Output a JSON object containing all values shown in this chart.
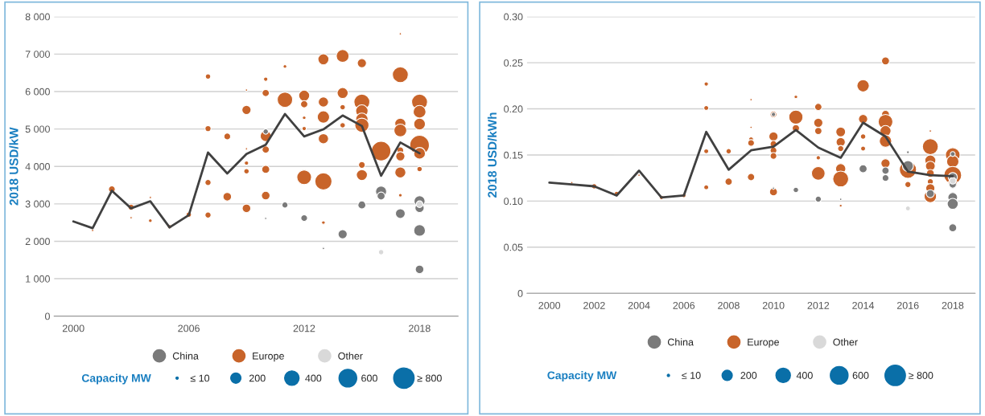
{
  "chart_data": [
    {
      "type": "bubble",
      "ylabel": "2018 USD/kW",
      "legend_title": "Capacity MW",
      "xlim": [
        1999,
        2020
      ],
      "xticks": [
        2000,
        2006,
        2012,
        2018
      ],
      "ylim": [
        0,
        8000
      ],
      "yticks": [
        0,
        {
          "value": 1000,
          "label": "1 000"
        },
        {
          "value": 2000,
          "label": "2 000"
        },
        {
          "value": 3000,
          "label": "3 000"
        },
        {
          "value": 4000,
          "label": "4 000"
        },
        {
          "value": 5000,
          "label": "5 000"
        },
        {
          "value": 6000,
          "label": "6 000"
        },
        {
          "value": 7000,
          "label": "7 000"
        },
        {
          "value": 8000,
          "label": "8 000"
        }
      ],
      "grid": "y",
      "legend": "bottom",
      "size_legend": [
        {
          "value": 10,
          "label": "≤ 10"
        },
        200,
        400,
        600,
        {
          "value": 800,
          "label": "≥ 800"
        }
      ],
      "series": [
        {
          "name": "China",
          "marker": "circle",
          "color": "#7a7a7a",
          "x": [
            2010,
            2010,
            2011,
            2012,
            2013,
            2014,
            2015,
            2016,
            2016,
            2017,
            2018,
            2018,
            2018,
            2018
          ],
          "values": [
            4930,
            2610,
            2970,
            2620,
            1810,
            2190,
            2970,
            3330,
            3210,
            2740,
            3070,
            2890,
            2290,
            1250
          ],
          "sizes": [
            55,
            10,
            70,
            85,
            10,
            160,
            120,
            230,
            120,
            180,
            230,
            160,
            260,
            140
          ]
        },
        {
          "name": "Europe",
          "marker": "circle",
          "color": "#c8642a",
          "x": [
            2002,
            2001,
            2003,
            2003,
            2004,
            2004,
            2005,
            2006,
            2007,
            2007,
            2007,
            2007,
            2008,
            2008,
            2009,
            2009,
            2009,
            2009,
            2009,
            2009,
            2010,
            2010,
            2010,
            2010,
            2010,
            2010,
            2011,
            2011,
            2012,
            2012,
            2012,
            2012,
            2012,
            2013,
            2013,
            2013,
            2013,
            2013,
            2013,
            2014,
            2014,
            2014,
            2014,
            2015,
            2015,
            2015,
            2015,
            2015,
            2015,
            2015,
            2016,
            2017,
            2017,
            2017,
            2017,
            2017,
            2017,
            2017,
            2017,
            2018,
            2018,
            2018,
            2018,
            2018,
            2018
          ],
          "values": [
            3390,
            2290,
            2910,
            2630,
            3170,
            2550,
            2390,
            2710,
            6400,
            5010,
            3570,
            2700,
            4800,
            3190,
            6040,
            5510,
            4470,
            4090,
            3870,
            2880,
            6330,
            5960,
            4810,
            4450,
            3920,
            3220,
            6670,
            5780,
            5890,
            5660,
            5300,
            5010,
            3710,
            6860,
            5720,
            5320,
            4740,
            3600,
            2500,
            6950,
            5960,
            5580,
            5100,
            6760,
            5720,
            5480,
            5260,
            5100,
            4040,
            3770,
            4410,
            7540,
            6450,
            5140,
            4960,
            4430,
            4270,
            3840,
            3230,
            5720,
            5460,
            5130,
            4570,
            4350,
            3930
          ],
          "sizes": [
            85,
            10,
            70,
            10,
            10,
            25,
            35,
            55,
            55,
            70,
            70,
            70,
            85,
            140,
            10,
            160,
            10,
            35,
            55,
            140,
            35,
            100,
            230,
            100,
            120,
            140,
            25,
            450,
            230,
            100,
            25,
            35,
            410,
            230,
            200,
            290,
            200,
            560,
            25,
            310,
            230,
            55,
            55,
            160,
            480,
            290,
            290,
            380,
            85,
            230,
            730,
            10,
            480,
            230,
            310,
            85,
            160,
            230,
            25,
            480,
            310,
            260,
            730,
            260,
            55
          ]
        },
        {
          "name": "Other",
          "marker": "circle",
          "color": "#d9d9d9",
          "x": [
            2016,
            2018
          ],
          "values": [
            1710,
            2990
          ],
          "sizes": [
            55,
            85
          ]
        },
        {
          "type": "line",
          "color": "#404040",
          "x": [
            2000,
            2001,
            2002,
            2003,
            2004,
            2005,
            2006,
            2007,
            2008,
            2009,
            2010,
            2011,
            2012,
            2013,
            2014,
            2015,
            2016,
            2017,
            2018
          ],
          "values": [
            2530,
            2350,
            3350,
            2880,
            3070,
            2370,
            2700,
            4370,
            3810,
            4330,
            4580,
            5400,
            4800,
            4990,
            5360,
            5080,
            3750,
            4640,
            4350
          ]
        }
      ]
    },
    {
      "type": "bubble",
      "ylabel": "2018 USD/kWh",
      "legend_title": "Capacity MW",
      "xlim": [
        1999,
        2019
      ],
      "xticks": [
        2000,
        2002,
        2004,
        2006,
        2008,
        2010,
        2012,
        2014,
        2016,
        2018
      ],
      "ylim": [
        0,
        0.3
      ],
      "yticks": [
        0,
        {
          "value": 0.05,
          "label": "0.05"
        },
        {
          "value": 0.1,
          "label": "0.10"
        },
        {
          "value": 0.15,
          "label": "0.15"
        },
        {
          "value": 0.2,
          "label": "0.20"
        },
        {
          "value": 0.25,
          "label": "0.25"
        },
        {
          "value": 0.3,
          "label": "0.30"
        }
      ],
      "grid": "y",
      "legend": "bottom",
      "size_legend": [
        {
          "value": 10,
          "label": "≤ 10"
        },
        200,
        400,
        600,
        {
          "value": 800,
          "label": "≥ 800"
        }
      ],
      "series": [
        {
          "name": "China",
          "marker": "circle",
          "color": "#7a7a7a",
          "x": [
            2010,
            2010,
            2011,
            2012,
            2013,
            2014,
            2015,
            2015,
            2016,
            2016,
            2017,
            2018,
            2018,
            2018,
            2018,
            2018,
            2018
          ],
          "values": [
            0.194,
            0.114,
            0.112,
            0.102,
            0.102,
            0.135,
            0.133,
            0.125,
            0.153,
            0.138,
            0.108,
            0.151,
            0.126,
            0.118,
            0.104,
            0.097,
            0.071
          ],
          "sizes": [
            35,
            10,
            55,
            70,
            10,
            120,
            100,
            85,
            15,
            230,
            120,
            45,
            160,
            100,
            180,
            230,
            120
          ]
        },
        {
          "name": "Europe",
          "marker": "circle",
          "color": "#c8642a",
          "x": [
            2001,
            2002,
            2003,
            2004,
            2005,
            2006,
            2007,
            2007,
            2007,
            2007,
            2008,
            2008,
            2009,
            2009,
            2009,
            2009,
            2009,
            2010,
            2010,
            2010,
            2010,
            2010,
            2010,
            2011,
            2011,
            2011,
            2012,
            2012,
            2012,
            2012,
            2012,
            2013,
            2013,
            2013,
            2013,
            2013,
            2013,
            2014,
            2014,
            2014,
            2014,
            2015,
            2015,
            2015,
            2015,
            2015,
            2015,
            2016,
            2016,
            2017,
            2017,
            2017,
            2017,
            2017,
            2017,
            2017,
            2017,
            2018,
            2018,
            2018,
            2018
          ],
          "values": [
            0.12,
            0.116,
            0.108,
            0.128,
            0.104,
            0.106,
            0.227,
            0.201,
            0.154,
            0.115,
            0.154,
            0.121,
            0.21,
            0.18,
            0.167,
            0.163,
            0.126,
            0.194,
            0.17,
            0.162,
            0.155,
            0.149,
            0.11,
            0.213,
            0.191,
            0.179,
            0.202,
            0.185,
            0.176,
            0.147,
            0.13,
            0.175,
            0.164,
            0.157,
            0.135,
            0.124,
            0.095,
            0.225,
            0.189,
            0.17,
            0.157,
            0.252,
            0.194,
            0.186,
            0.176,
            0.165,
            0.141,
            0.134,
            0.118,
            0.176,
            0.159,
            0.144,
            0.138,
            0.13,
            0.121,
            0.114,
            0.105,
            0.15,
            0.143,
            0.128,
            0.119
          ],
          "sizes": [
            10,
            55,
            45,
            10,
            35,
            35,
            35,
            45,
            45,
            45,
            55,
            100,
            10,
            10,
            45,
            85,
            100,
            85,
            160,
            85,
            85,
            85,
            120,
            25,
            380,
            100,
            100,
            160,
            100,
            35,
            350,
            180,
            160,
            70,
            200,
            480,
            15,
            290,
            160,
            55,
            45,
            120,
            120,
            410,
            230,
            290,
            160,
            560,
            70,
            10,
            480,
            230,
            180,
            120,
            70,
            160,
            290,
            410,
            290,
            600,
            160
          ]
        },
        {
          "name": "Other",
          "marker": "circle",
          "color": "#d9d9d9",
          "x": [
            2016,
            2018
          ],
          "values": [
            0.092,
            0.122
          ],
          "sizes": [
            45,
            85
          ]
        },
        {
          "type": "line",
          "color": "#404040",
          "x": [
            2000,
            2001,
            2002,
            2003,
            2004,
            2005,
            2006,
            2007,
            2008,
            2009,
            2010,
            2011,
            2012,
            2013,
            2014,
            2015,
            2016,
            2017,
            2018
          ],
          "values": [
            0.12,
            0.118,
            0.116,
            0.106,
            0.133,
            0.104,
            0.106,
            0.175,
            0.134,
            0.155,
            0.159,
            0.177,
            0.158,
            0.147,
            0.185,
            0.17,
            0.132,
            0.128,
            0.127
          ]
        }
      ]
    }
  ]
}
